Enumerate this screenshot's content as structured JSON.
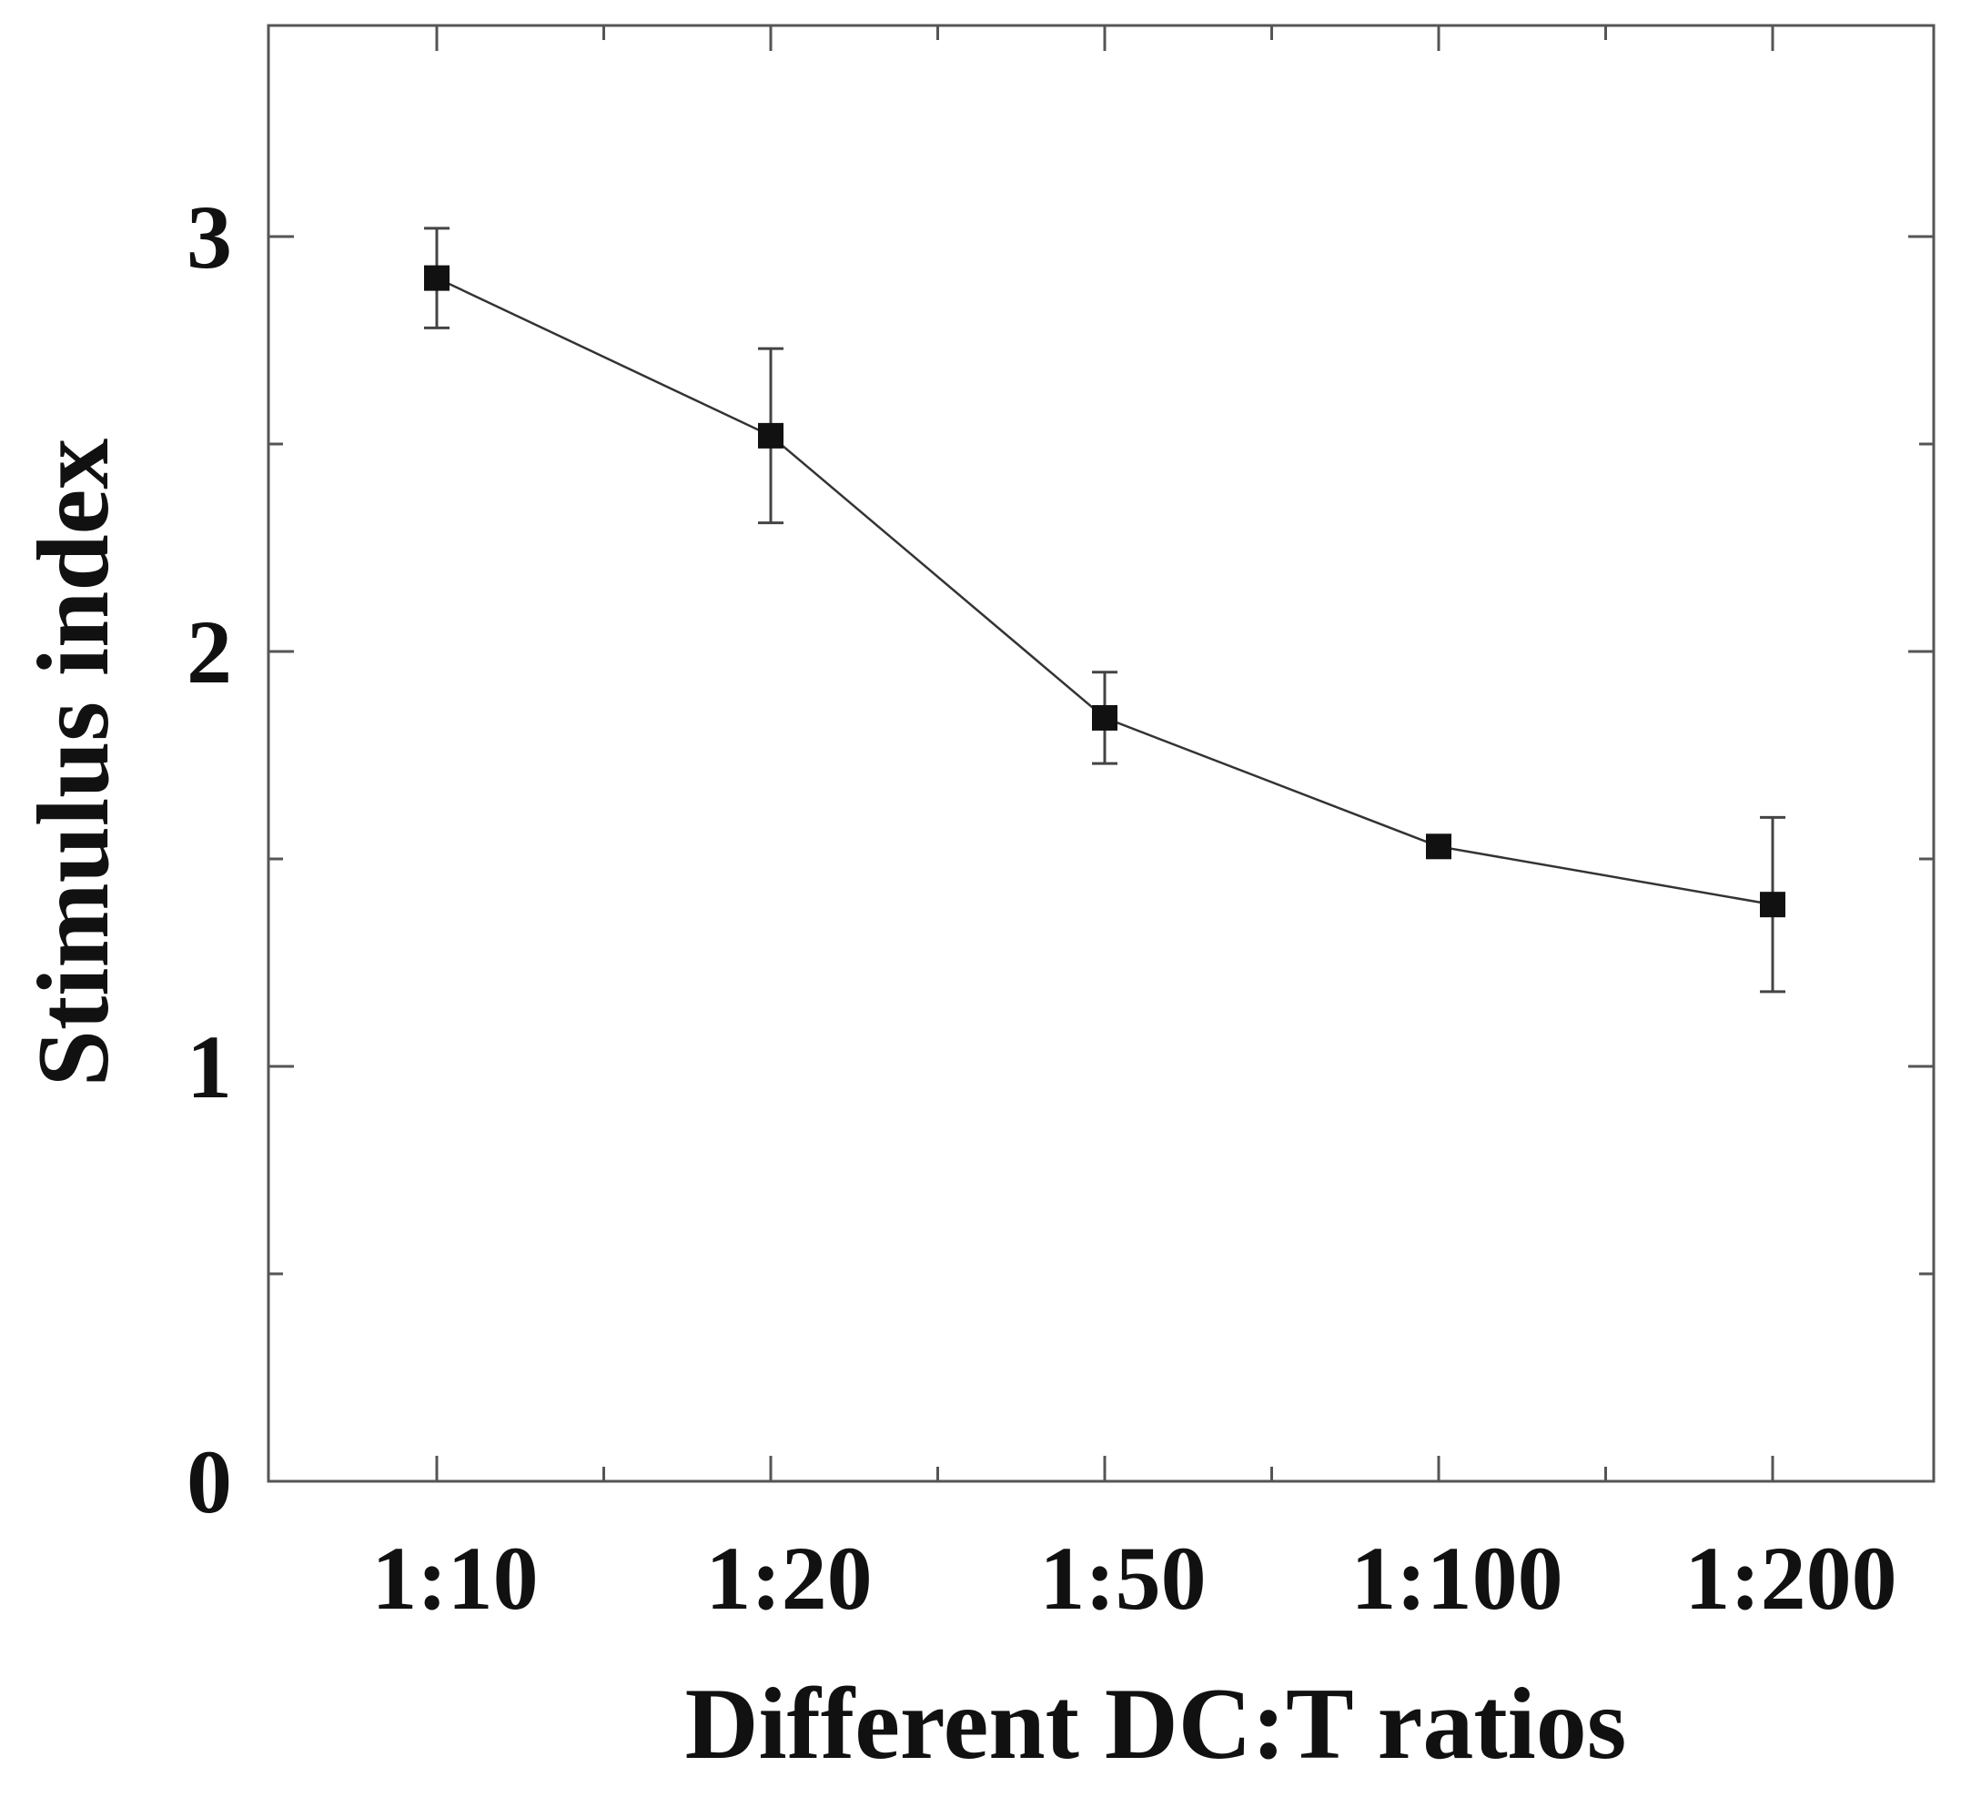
{
  "chart_data": {
    "type": "line",
    "title": "",
    "xlabel": "Different DC:T ratios",
    "ylabel": "Stimulus index",
    "categories": [
      "1:10",
      "1:20",
      "1:50",
      "1:100",
      "1:200"
    ],
    "series": [
      {
        "name": "Stimulus index",
        "values": [
          2.9,
          2.52,
          1.84,
          1.53,
          1.39
        ],
        "error": [
          0.12,
          0.21,
          0.11,
          0.0,
          0.21
        ]
      }
    ],
    "ylim": [
      0,
      3.5
    ],
    "yticks": [
      0,
      1,
      2,
      3
    ],
    "ytick_labels": [
      "0",
      "1",
      "2",
      "3"
    ],
    "y_minor_ticks": [
      0.5,
      1.5,
      2.5
    ],
    "grid": false,
    "legend": "none",
    "colors": {
      "line": "#333333",
      "marker": "#111111",
      "axis": "#555555"
    }
  }
}
